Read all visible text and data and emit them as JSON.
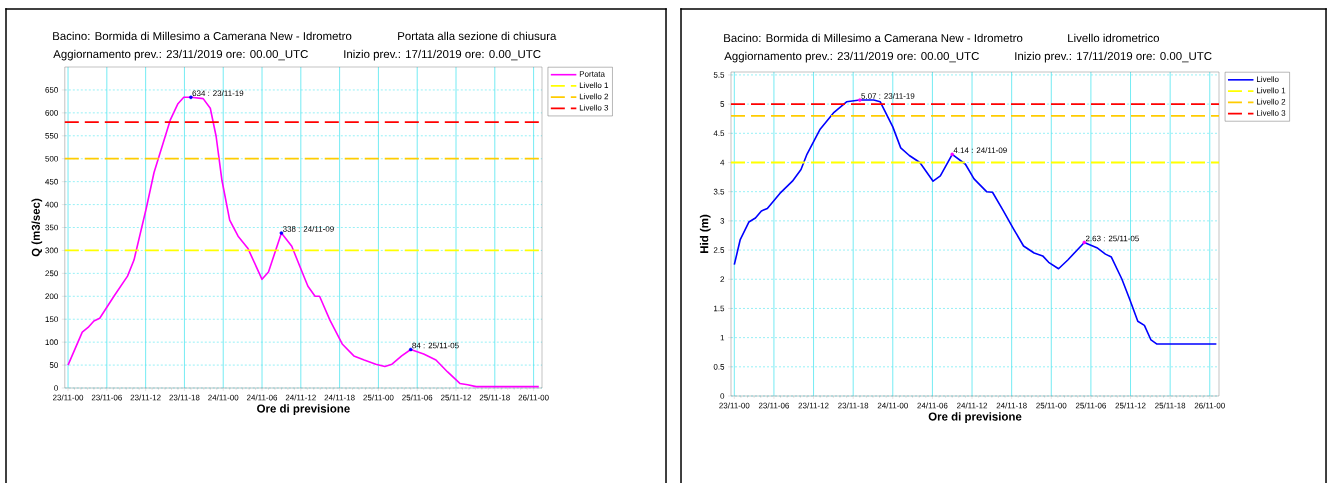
{
  "chart_data": [
    {
      "type": "line",
      "title": "Bacino:  Bormida di Millesimo a Camerana New - Idrometro",
      "subtitle": "Portata alla sezione di chiusura",
      "annotations": [
        "Aggiornamento prev.: 23/11/2019 ore: 00.00_UTC",
        "Inizio prev.: 17/11/2019 ore: 0.00_UTC",
        {
          "text": "634   :   23/11-19",
          "x": "2019-11-23T19:00",
          "y": 634
        },
        {
          "text": "338   :   24/11-09",
          "x": "2019-11-24T09:00",
          "y": 338
        },
        {
          "text": "84   :   25/11-05",
          "x": "2019-11-25T05:00",
          "y": 84
        }
      ],
      "xlabel": "Ore di previsione",
      "ylabel": "Q (m3/sec)",
      "xlim": [
        "2019-11-22T23:30",
        "2019-11-26T01:18"
      ],
      "ylim": [
        0,
        700
      ],
      "xticks": [
        {
          "value": "2019-11-23T00:00",
          "label": "23/11-00"
        },
        {
          "value": "2019-11-23T06:00",
          "label": "23/11-06"
        },
        {
          "value": "2019-11-23T12:00",
          "label": "23/11-12"
        },
        {
          "value": "2019-11-23T18:00",
          "label": "23/11-18"
        },
        {
          "value": "2019-11-24T00:00",
          "label": "24/11-00"
        },
        {
          "value": "2019-11-24T06:00",
          "label": "24/11-06"
        },
        {
          "value": "2019-11-24T12:00",
          "label": "24/11-12"
        },
        {
          "value": "2019-11-24T18:00",
          "label": "24/11-18"
        },
        {
          "value": "2019-11-25T00:00",
          "label": "25/11-00"
        },
        {
          "value": "2019-11-25T06:00",
          "label": "25/11-06"
        },
        {
          "value": "2019-11-25T12:00",
          "label": "25/11-12"
        },
        {
          "value": "2019-11-25T18:00",
          "label": "25/11-18"
        },
        {
          "value": "2019-11-26T00:00",
          "label": "26/11-00"
        }
      ],
      "yticks": [
        0,
        50,
        100,
        150,
        200,
        250,
        300,
        350,
        400,
        450,
        500,
        550,
        600,
        650
      ],
      "grid": true,
      "legend": "top right",
      "marker": "none",
      "line_style": "solid",
      "series": [
        {
          "name": "Portata",
          "color": "#ff00ff",
          "x": [
            "2019-11-23T00:00",
            "2019-11-23T02:12",
            "2019-11-23T03:06",
            "2019-11-23T04:00",
            "2019-11-23T04:54",
            "2019-11-23T07:06",
            "2019-11-23T09:12",
            "2019-11-23T10:12",
            "2019-11-23T12:06",
            "2019-11-23T13:18",
            "2019-11-23T15:48",
            "2019-11-23T17:00",
            "2019-11-23T17:54",
            "2019-11-23T19:00",
            "2019-11-23T20:54",
            "2019-11-23T22:00",
            "2019-11-23T22:54",
            "2019-11-23T23:48",
            "2019-11-24T01:00",
            "2019-11-24T02:18",
            "2019-11-24T03:48",
            "2019-11-24T06:00",
            "2019-11-24T07:00",
            "2019-11-24T09:00",
            "2019-11-24T10:36",
            "2019-11-24T12:12",
            "2019-11-24T13:06",
            "2019-11-24T14:12",
            "2019-11-24T14:54",
            "2019-11-24T16:30",
            "2019-11-24T18:24",
            "2019-11-24T20:12",
            "2019-11-24T21:48",
            "2019-11-24T23:36",
            "2019-11-25T01:00",
            "2019-11-25T02:06",
            "2019-11-25T03:36",
            "2019-11-25T05:00",
            "2019-11-25T07:00",
            "2019-11-25T08:54",
            "2019-11-25T10:42",
            "2019-11-25T12:36",
            "2019-11-25T13:48",
            "2019-11-25T15:06",
            "2019-11-26T00:48"
          ],
          "values": [
            50,
            122,
            132,
            146,
            152,
            200,
            244,
            279,
            392,
            470,
            584,
            620,
            634,
            634,
            631,
            610,
            549,
            453,
            366,
            331,
            305,
            237,
            253,
            338,
            309,
            253,
            222,
            200,
            200,
            148,
            96,
            70,
            61,
            52,
            47,
            52,
            70,
            84,
            74,
            61,
            35,
            10,
            7,
            3,
            3
          ]
        },
        {
          "type": "scatter",
          "color": "#0000ff",
          "x": [
            "2019-11-23T19:00",
            "2019-11-24T09:00",
            "2019-11-25T05:00"
          ],
          "values": [
            634,
            338,
            84
          ]
        }
      ],
      "ref_lines": [
        {
          "axis": "y",
          "value": 300,
          "label": "Livello 1",
          "color": "#ffff00",
          "line_style": "dashed"
        },
        {
          "axis": "y",
          "value": 500,
          "label": "Livello 2",
          "color": "#ffcc00",
          "line_style": "dashed"
        },
        {
          "axis": "y",
          "value": 580,
          "label": "Livello 3",
          "color": "#ff0000",
          "line_style": "dashed"
        }
      ]
    },
    {
      "type": "line",
      "title": "Bacino:  Bormida di Millesimo a Camerana New - Idrometro",
      "subtitle": "Livello idrometrico",
      "annotations": [
        "Aggiornamento prev.: 23/11/2019 ore: 00.00_UTC",
        "Inizio prev.: 17/11/2019 ore: 0.00_UTC",
        {
          "text": "5.07   :   23/11-19",
          "x": "2019-11-23T19:00",
          "y": 5.07
        },
        {
          "text": "4.14   :   24/11-09",
          "x": "2019-11-24T09:00",
          "y": 4.14
        },
        {
          "text": "2.63   :   25/11-05",
          "x": "2019-11-25T05:00",
          "y": 2.63
        }
      ],
      "xlabel": "Ore di previsione",
      "ylabel": "Hid (m)",
      "xlim": [
        "2019-11-22T23:30",
        "2019-11-26T01:24"
      ],
      "ylim": [
        0,
        5.55
      ],
      "xticks": [
        {
          "value": "2019-11-23T00:00",
          "label": "23/11-00"
        },
        {
          "value": "2019-11-23T06:00",
          "label": "23/11-06"
        },
        {
          "value": "2019-11-23T12:00",
          "label": "23/11-12"
        },
        {
          "value": "2019-11-23T18:00",
          "label": "23/11-18"
        },
        {
          "value": "2019-11-24T00:00",
          "label": "24/11-00"
        },
        {
          "value": "2019-11-24T06:00",
          "label": "24/11-06"
        },
        {
          "value": "2019-11-24T12:00",
          "label": "24/11-12"
        },
        {
          "value": "2019-11-24T18:00",
          "label": "24/11-18"
        },
        {
          "value": "2019-11-25T00:00",
          "label": "25/11-00"
        },
        {
          "value": "2019-11-25T06:00",
          "label": "25/11-06"
        },
        {
          "value": "2019-11-25T12:00",
          "label": "25/11-12"
        },
        {
          "value": "2019-11-25T18:00",
          "label": "25/11-18"
        },
        {
          "value": "2019-11-26T00:00",
          "label": "26/11-00"
        }
      ],
      "yticks": [
        0,
        0.5,
        1,
        1.5,
        2,
        2.5,
        3,
        3.5,
        4,
        4.5,
        5,
        5.5
      ],
      "grid": true,
      "legend": "top right",
      "marker": "none",
      "line_style": "solid",
      "series": [
        {
          "name": "Livello",
          "color": "#0000ff",
          "x": [
            "2019-11-23T00:00",
            "2019-11-23T00:54",
            "2019-11-23T02:12",
            "2019-11-23T03:12",
            "2019-11-23T04:06",
            "2019-11-23T05:00",
            "2019-11-23T06:54",
            "2019-11-23T08:48",
            "2019-11-23T10:06",
            "2019-11-23T11:00",
            "2019-11-23T13:00",
            "2019-11-23T15:06",
            "2019-11-23T17:00",
            "2019-11-23T19:00",
            "2019-11-23T21:06",
            "2019-11-23T22:06",
            "2019-11-24T00:00",
            "2019-11-24T01:12",
            "2019-11-24T02:30",
            "2019-11-24T04:06",
            "2019-11-24T06:06",
            "2019-11-24T07:12",
            "2019-11-24T09:00",
            "2019-11-24T11:00",
            "2019-11-24T12:18",
            "2019-11-24T14:12",
            "2019-11-24T15:06",
            "2019-11-24T16:42",
            "2019-11-24T18:18",
            "2019-11-24T19:48",
            "2019-11-24T21:24",
            "2019-11-24T22:42",
            "2019-11-24T23:36",
            "2019-11-25T01:06",
            "2019-11-25T02:30",
            "2019-11-25T05:00",
            "2019-11-25T06:54",
            "2019-11-25T08:12",
            "2019-11-25T09:06",
            "2019-11-25T10:42",
            "2019-11-25T11:54",
            "2019-11-25T13:06",
            "2019-11-25T14:06",
            "2019-11-25T15:06",
            "2019-11-25T16:00",
            "2019-11-26T01:00"
          ],
          "values": [
            2.25,
            2.68,
            2.98,
            3.05,
            3.17,
            3.21,
            3.47,
            3.68,
            3.88,
            4.14,
            4.57,
            4.86,
            5.04,
            5.07,
            5.07,
            5.04,
            4.61,
            4.25,
            4.12,
            4.0,
            3.68,
            3.77,
            4.14,
            3.97,
            3.72,
            3.5,
            3.49,
            3.18,
            2.86,
            2.57,
            2.45,
            2.4,
            2.29,
            2.18,
            2.33,
            2.63,
            2.54,
            2.43,
            2.38,
            2.0,
            1.65,
            1.28,
            1.21,
            0.96,
            0.89,
            0.89
          ]
        },
        {
          "type": "scatter",
          "color": "#ff00ff",
          "x": [
            "2019-11-23T19:00",
            "2019-11-24T09:00",
            "2019-11-25T05:00"
          ],
          "values": [
            5.07,
            4.14,
            2.63
          ]
        }
      ],
      "ref_lines": [
        {
          "axis": "y",
          "value": 4,
          "label": "Livello 1",
          "color": "#ffff00",
          "line_style": "dashed"
        },
        {
          "axis": "y",
          "value": 4.8,
          "label": "Livello 2",
          "color": "#ffcc00",
          "line_style": "dashed"
        },
        {
          "axis": "y",
          "value": 5,
          "label": "Livello 3",
          "color": "#ff0000",
          "line_style": "dashed"
        }
      ]
    }
  ]
}
